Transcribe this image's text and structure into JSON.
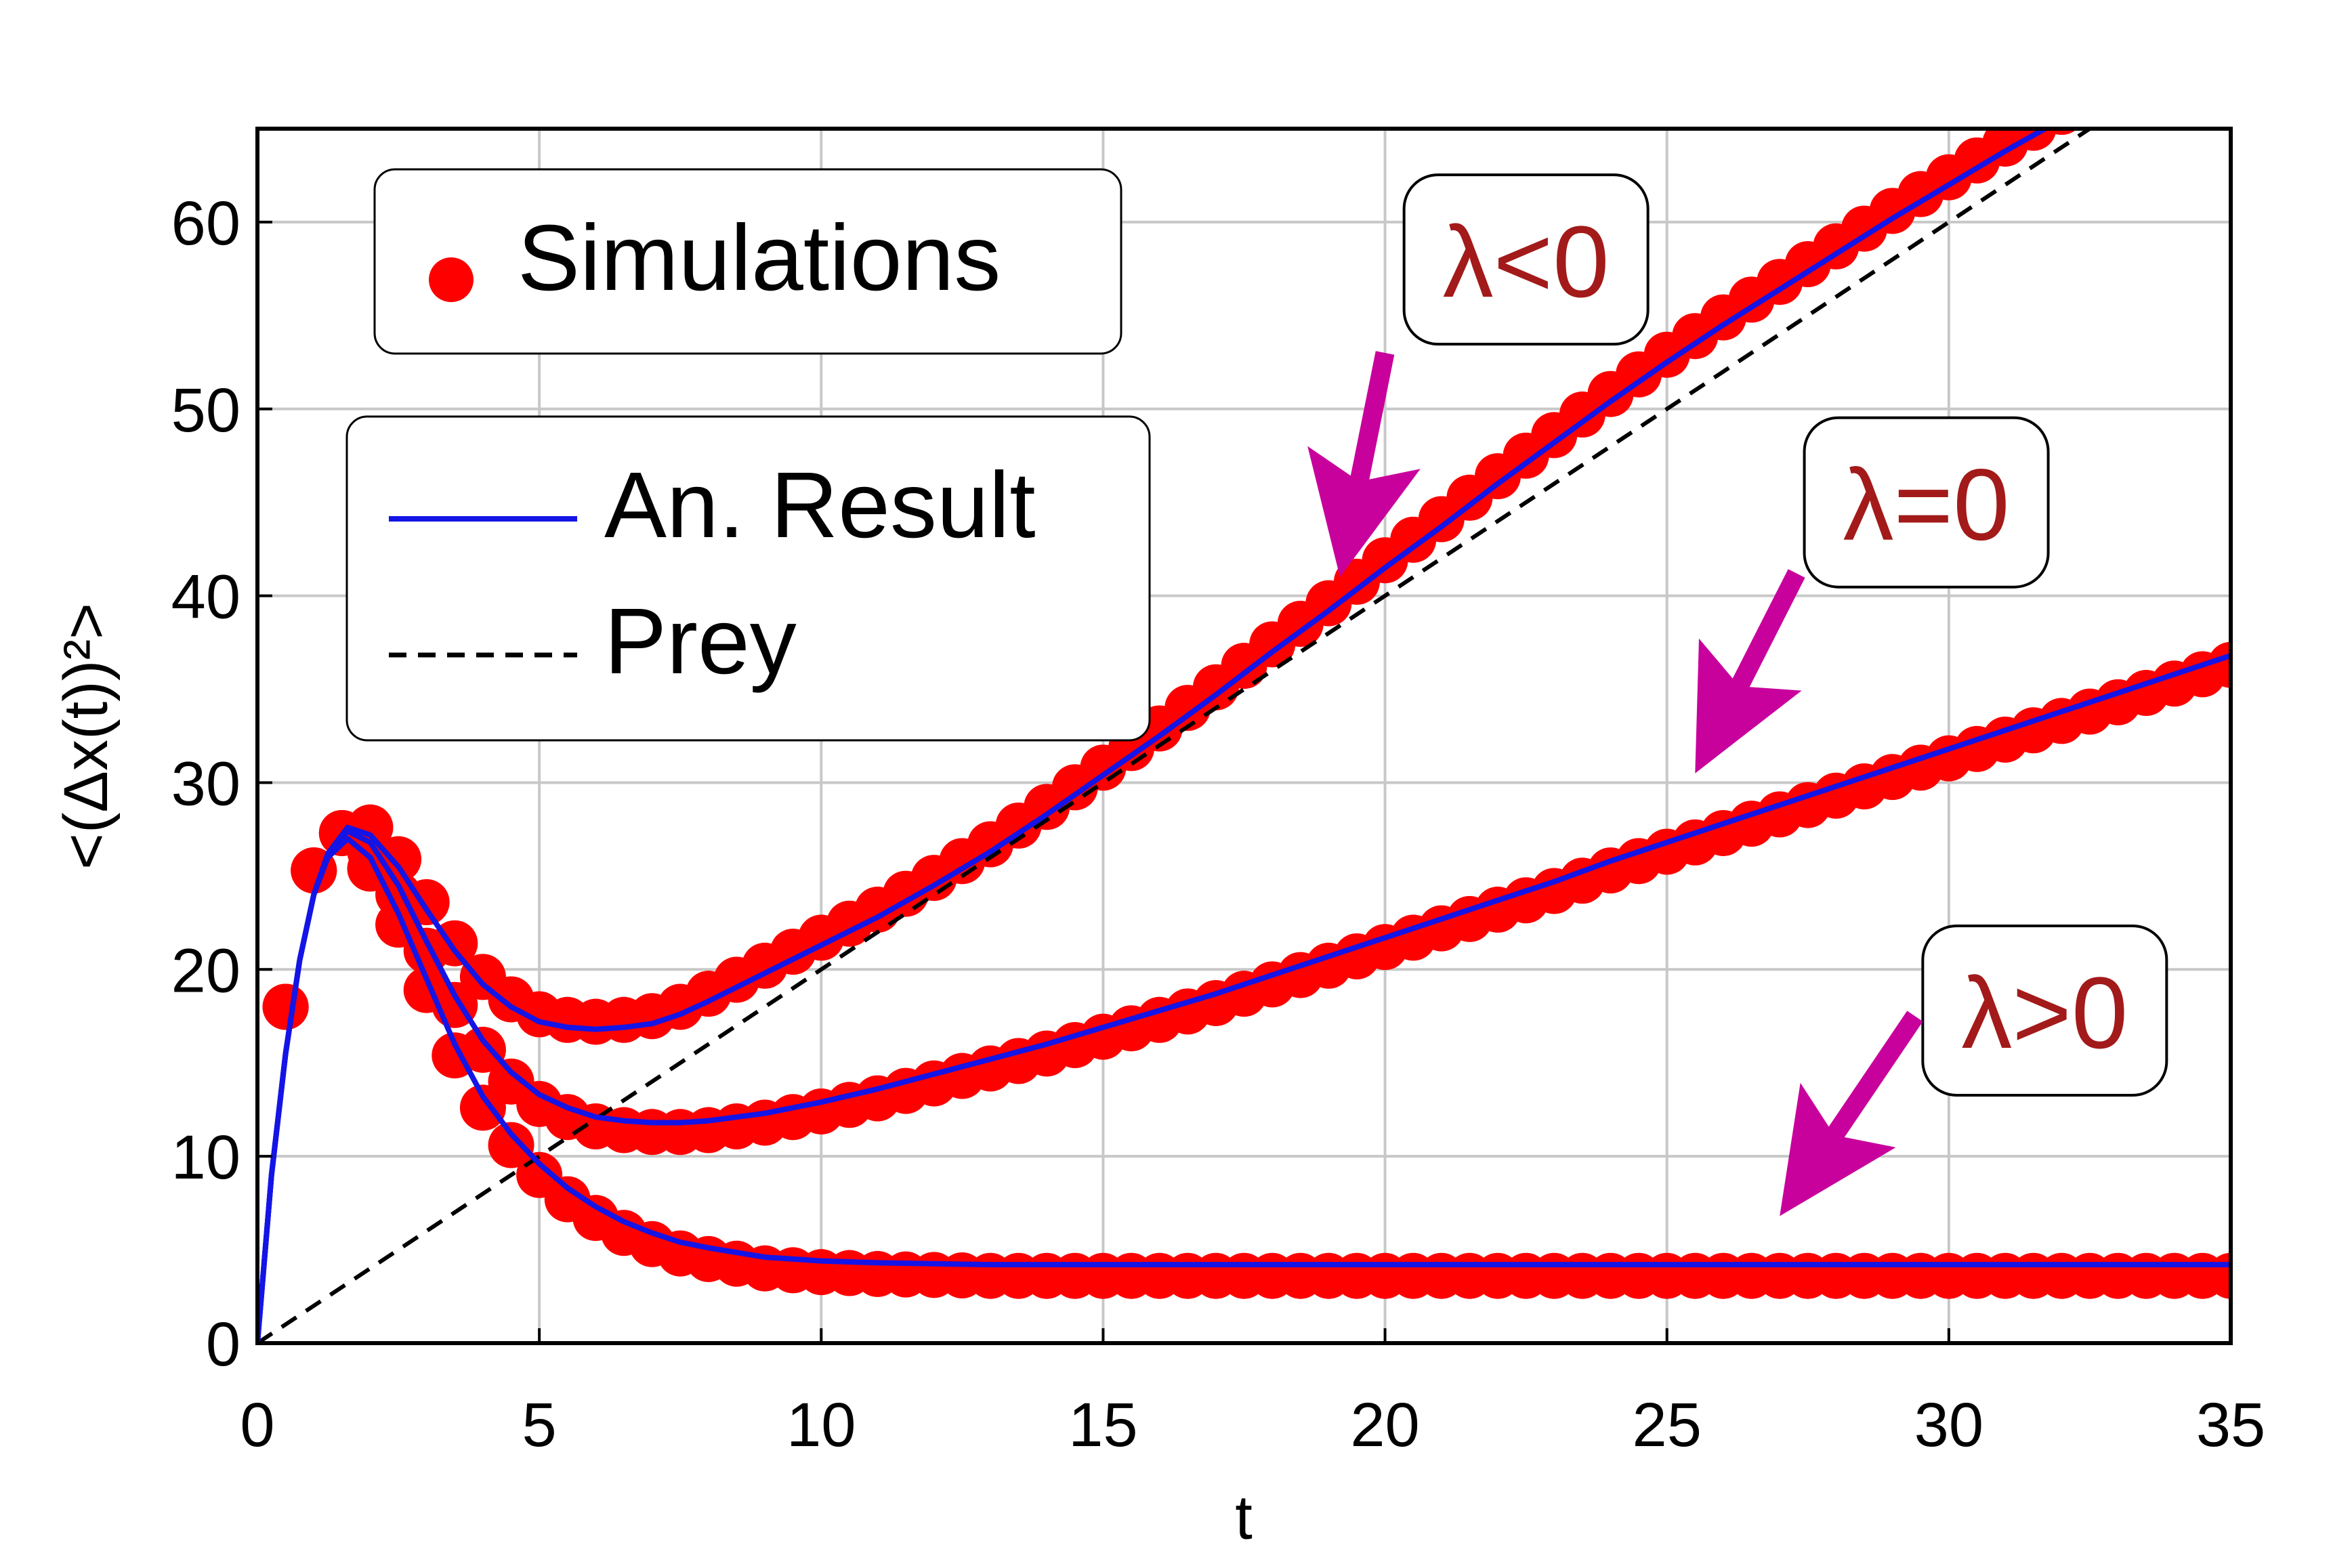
{
  "chart_data": {
    "type": "line",
    "xlabel": "t",
    "ylabel": "<(Δx(t))²>",
    "xlim": [
      0,
      35
    ],
    "ylim": [
      0,
      65
    ],
    "xticks": [
      "0",
      "5",
      "10",
      "15",
      "20",
      "25",
      "30",
      "35"
    ],
    "yticks": [
      "0",
      "10",
      "20",
      "30",
      "40",
      "50",
      "60"
    ],
    "grid": true,
    "legend": [
      {
        "label": "Simulations",
        "placement": "top-left"
      },
      {
        "label": "An. Result",
        "placement": "upper-left"
      },
      {
        "label": "Prey",
        "placement": "upper-left"
      }
    ],
    "series": [
      {
        "name": "Prey",
        "style": "dashed",
        "color": "#000000",
        "x": [
          0,
          5,
          10,
          15,
          20,
          25,
          30,
          33.5
        ],
        "y": [
          0,
          10,
          20,
          30,
          40,
          50,
          60,
          67
        ]
      },
      {
        "name": "An. Result",
        "case": "λ<0",
        "color": "#1414e6",
        "x": [
          0,
          0.25,
          0.5,
          0.75,
          1,
          1.25,
          1.6,
          2,
          2.5,
          3,
          3.5,
          4,
          4.5,
          5,
          5.5,
          6,
          6.5,
          7,
          7.5,
          8,
          9,
          10,
          11,
          12,
          13,
          14,
          15,
          16,
          17,
          18,
          19,
          20,
          21,
          22,
          23,
          24,
          25,
          26,
          27,
          28,
          29,
          30,
          31,
          32,
          33,
          34,
          35
        ],
        "y": [
          0,
          9,
          15.5,
          20.5,
          24,
          26.2,
          27.6,
          27.2,
          25.5,
          23.2,
          21,
          19.2,
          18,
          17.2,
          16.9,
          16.8,
          16.9,
          17.1,
          17.6,
          18.3,
          19.8,
          21.3,
          22.8,
          24.5,
          26.3,
          28.3,
          30.4,
          32.5,
          34.7,
          37,
          39.2,
          41.5,
          43.7,
          46,
          48.2,
          50.4,
          52.5,
          54.5,
          56.4,
          58.3,
          60.2,
          62,
          63.8,
          65.5,
          67.2,
          68.8,
          70.4
        ]
      },
      {
        "name": "An. Result",
        "case": "λ=0",
        "color": "#1414e6",
        "x": [
          0,
          0.25,
          0.5,
          0.75,
          1,
          1.25,
          1.6,
          2,
          2.5,
          3,
          3.5,
          4,
          4.5,
          5,
          5.5,
          6,
          6.5,
          7,
          7.5,
          8,
          9,
          10,
          11,
          12,
          13,
          14,
          15,
          16,
          17,
          18,
          19,
          20,
          21,
          22,
          23,
          24,
          25,
          26,
          27,
          28,
          29,
          30,
          31,
          32,
          33,
          34,
          35
        ],
        "y": [
          0,
          9,
          15.5,
          20.5,
          24,
          26.2,
          27.4,
          26.8,
          24.5,
          21.5,
          18.6,
          16.2,
          14.5,
          13.3,
          12.6,
          12.1,
          11.9,
          11.8,
          11.8,
          11.9,
          12.3,
          12.9,
          13.6,
          14.4,
          15.2,
          16,
          16.9,
          17.8,
          18.7,
          19.7,
          20.7,
          21.7,
          22.7,
          23.7,
          24.7,
          25.8,
          26.8,
          27.8,
          28.8,
          29.8,
          30.8,
          31.8,
          32.8,
          33.8,
          34.8,
          35.8,
          36.8
        ]
      },
      {
        "name": "An. Result",
        "case": "λ>0",
        "color": "#1414e6",
        "x": [
          0,
          0.25,
          0.5,
          0.75,
          1,
          1.25,
          1.6,
          2,
          2.5,
          3,
          3.5,
          4,
          4.5,
          5,
          5.5,
          6,
          6.5,
          7,
          7.5,
          8,
          9,
          10,
          11,
          12,
          13,
          14,
          15,
          16,
          17,
          18,
          19,
          20,
          21,
          22,
          23,
          24,
          25,
          26,
          27,
          28,
          29,
          30,
          31,
          32,
          33,
          34,
          35
        ],
        "y": [
          0,
          9,
          15.5,
          20.5,
          24,
          26,
          27,
          26,
          23,
          19.5,
          16,
          13.2,
          11.2,
          9.6,
          8.3,
          7.3,
          6.5,
          5.9,
          5.4,
          5.1,
          4.6,
          4.4,
          4.3,
          4.25,
          4.2,
          4.2,
          4.2,
          4.2,
          4.2,
          4.2,
          4.2,
          4.2,
          4.2,
          4.2,
          4.2,
          4.2,
          4.2,
          4.2,
          4.2,
          4.2,
          4.2,
          4.2,
          4.2,
          4.2,
          4.2,
          4.2,
          4.2
        ]
      }
    ],
    "simulations": {
      "name": "Simulations",
      "color": "#ff0000",
      "start": [
        [
          0.5,
          18
        ],
        [
          1,
          25.3
        ],
        [
          1.5,
          27.3
        ]
      ],
      "offsets": [
        -0.4,
        0.5,
        0.6
      ]
    },
    "annotations": [
      {
        "text": "λ<0",
        "x": 22.5,
        "y": 58,
        "arrow_from": [
          20.0,
          53
        ],
        "arrow_to": [
          19.2,
          41
        ]
      },
      {
        "text": "λ=0",
        "x": 29.6,
        "y": 45,
        "arrow_from": [
          27.3,
          41.2
        ],
        "arrow_to": [
          25.5,
          30.5
        ]
      },
      {
        "text": "λ>0",
        "x": 31.7,
        "y": 17.8,
        "arrow_from": [
          29.4,
          17.5
        ],
        "arrow_to": [
          27.0,
          6.8
        ]
      }
    ]
  }
}
